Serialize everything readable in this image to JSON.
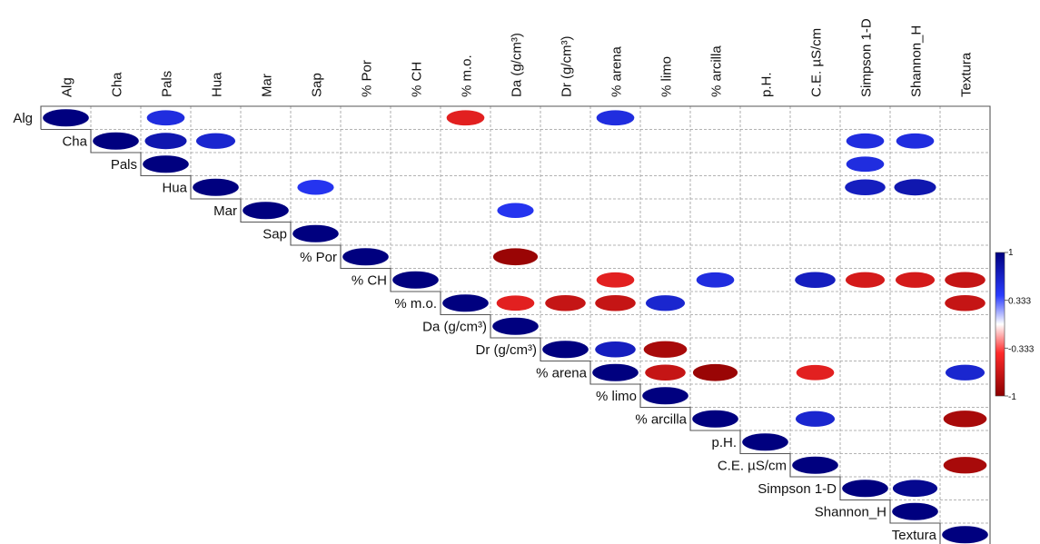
{
  "chart_data": {
    "type": "heatmap",
    "layout": "upper-triangular correlogram with ellipses",
    "variables": [
      "Alg",
      "Cha",
      "Pals",
      "Hua",
      "Mar",
      "Sap",
      "% Por",
      "% CH",
      "% m.o.",
      "Da (g/cm³)",
      "Dr (g/cm³)",
      "% arena",
      "% limo",
      "% arcilla",
      "p.H.",
      "C.E. µS/cm",
      "Simpson 1-D",
      "Shannon_H",
      "Textura"
    ],
    "correlations": [
      {
        "row": "Alg",
        "col": "Alg",
        "value": 1
      },
      {
        "row": "Alg",
        "col": "Pals",
        "value": 0.7
      },
      {
        "row": "Alg",
        "col": "% m.o.",
        "value": -0.7
      },
      {
        "row": "Alg",
        "col": "% arena",
        "value": 0.7
      },
      {
        "row": "Cha",
        "col": "Cha",
        "value": 1
      },
      {
        "row": "Cha",
        "col": "Pals",
        "value": 0.85
      },
      {
        "row": "Cha",
        "col": "Hua",
        "value": 0.75
      },
      {
        "row": "Cha",
        "col": "Simpson 1-D",
        "value": 0.7
      },
      {
        "row": "Cha",
        "col": "Shannon_H",
        "value": 0.7
      },
      {
        "row": "Pals",
        "col": "Pals",
        "value": 1
      },
      {
        "row": "Pals",
        "col": "Simpson 1-D",
        "value": 0.7
      },
      {
        "row": "Hua",
        "col": "Hua",
        "value": 1
      },
      {
        "row": "Hua",
        "col": "Sap",
        "value": 0.65
      },
      {
        "row": "Hua",
        "col": "Simpson 1-D",
        "value": 0.8
      },
      {
        "row": "Hua",
        "col": "Shannon_H",
        "value": 0.85
      },
      {
        "row": "Mar",
        "col": "Mar",
        "value": 1
      },
      {
        "row": "Mar",
        "col": "Da (g/cm³)",
        "value": 0.65
      },
      {
        "row": "Sap",
        "col": "Sap",
        "value": 1
      },
      {
        "row": "% Por",
        "col": "% Por",
        "value": 1
      },
      {
        "row": "% Por",
        "col": "Da (g/cm³)",
        "value": -0.95
      },
      {
        "row": "% CH",
        "col": "% CH",
        "value": 1
      },
      {
        "row": "% CH",
        "col": "% arena",
        "value": -0.7
      },
      {
        "row": "% CH",
        "col": "% arcilla",
        "value": 0.7
      },
      {
        "row": "% CH",
        "col": "C.E. µS/cm",
        "value": 0.8
      },
      {
        "row": "% CH",
        "col": "Simpson 1-D",
        "value": -0.75
      },
      {
        "row": "% CH",
        "col": "Shannon_H",
        "value": -0.75
      },
      {
        "row": "% CH",
        "col": "Textura",
        "value": -0.8
      },
      {
        "row": "% m.o.",
        "col": "% m.o.",
        "value": 1
      },
      {
        "row": "% m.o.",
        "col": "Da (g/cm³)",
        "value": -0.7
      },
      {
        "row": "% m.o.",
        "col": "Dr (g/cm³)",
        "value": -0.8
      },
      {
        "row": "% m.o.",
        "col": "% arena",
        "value": -0.8
      },
      {
        "row": "% m.o.",
        "col": "% limo",
        "value": 0.75
      },
      {
        "row": "% m.o.",
        "col": "Textura",
        "value": -0.8
      },
      {
        "row": "Da (g/cm³)",
        "col": "Da (g/cm³)",
        "value": 1
      },
      {
        "row": "Dr (g/cm³)",
        "col": "Dr (g/cm³)",
        "value": 1
      },
      {
        "row": "Dr (g/cm³)",
        "col": "% arena",
        "value": 0.8
      },
      {
        "row": "Dr (g/cm³)",
        "col": "% limo",
        "value": -0.9
      },
      {
        "row": "% arena",
        "col": "% arena",
        "value": 1
      },
      {
        "row": "% arena",
        "col": "% limo",
        "value": -0.8
      },
      {
        "row": "% arena",
        "col": "% arcilla",
        "value": -0.95
      },
      {
        "row": "% arena",
        "col": "C.E. µS/cm",
        "value": -0.7
      },
      {
        "row": "% arena",
        "col": "Textura",
        "value": 0.75
      },
      {
        "row": "% limo",
        "col": "% limo",
        "value": 1
      },
      {
        "row": "% arcilla",
        "col": "% arcilla",
        "value": 1
      },
      {
        "row": "% arcilla",
        "col": "C.E. µS/cm",
        "value": 0.75
      },
      {
        "row": "% arcilla",
        "col": "Textura",
        "value": -0.9
      },
      {
        "row": "p.H.",
        "col": "p.H.",
        "value": 1
      },
      {
        "row": "C.E. µS/cm",
        "col": "C.E. µS/cm",
        "value": 1
      },
      {
        "row": "C.E. µS/cm",
        "col": "Textura",
        "value": -0.9
      },
      {
        "row": "Simpson 1-D",
        "col": "Simpson 1-D",
        "value": 1
      },
      {
        "row": "Simpson 1-D",
        "col": "Shannon_H",
        "value": 0.95
      },
      {
        "row": "Shannon_H",
        "col": "Shannon_H",
        "value": 1
      },
      {
        "row": "Textura",
        "col": "Textura",
        "value": 1
      }
    ],
    "colorbar": {
      "range": [
        -1,
        1
      ],
      "ticks": [
        "1",
        "0.333",
        "-0.333",
        "-1"
      ],
      "colors": [
        "#00007f",
        "#ffffff",
        "#8b0000"
      ]
    },
    "legend_position": "right",
    "grid": true
  }
}
